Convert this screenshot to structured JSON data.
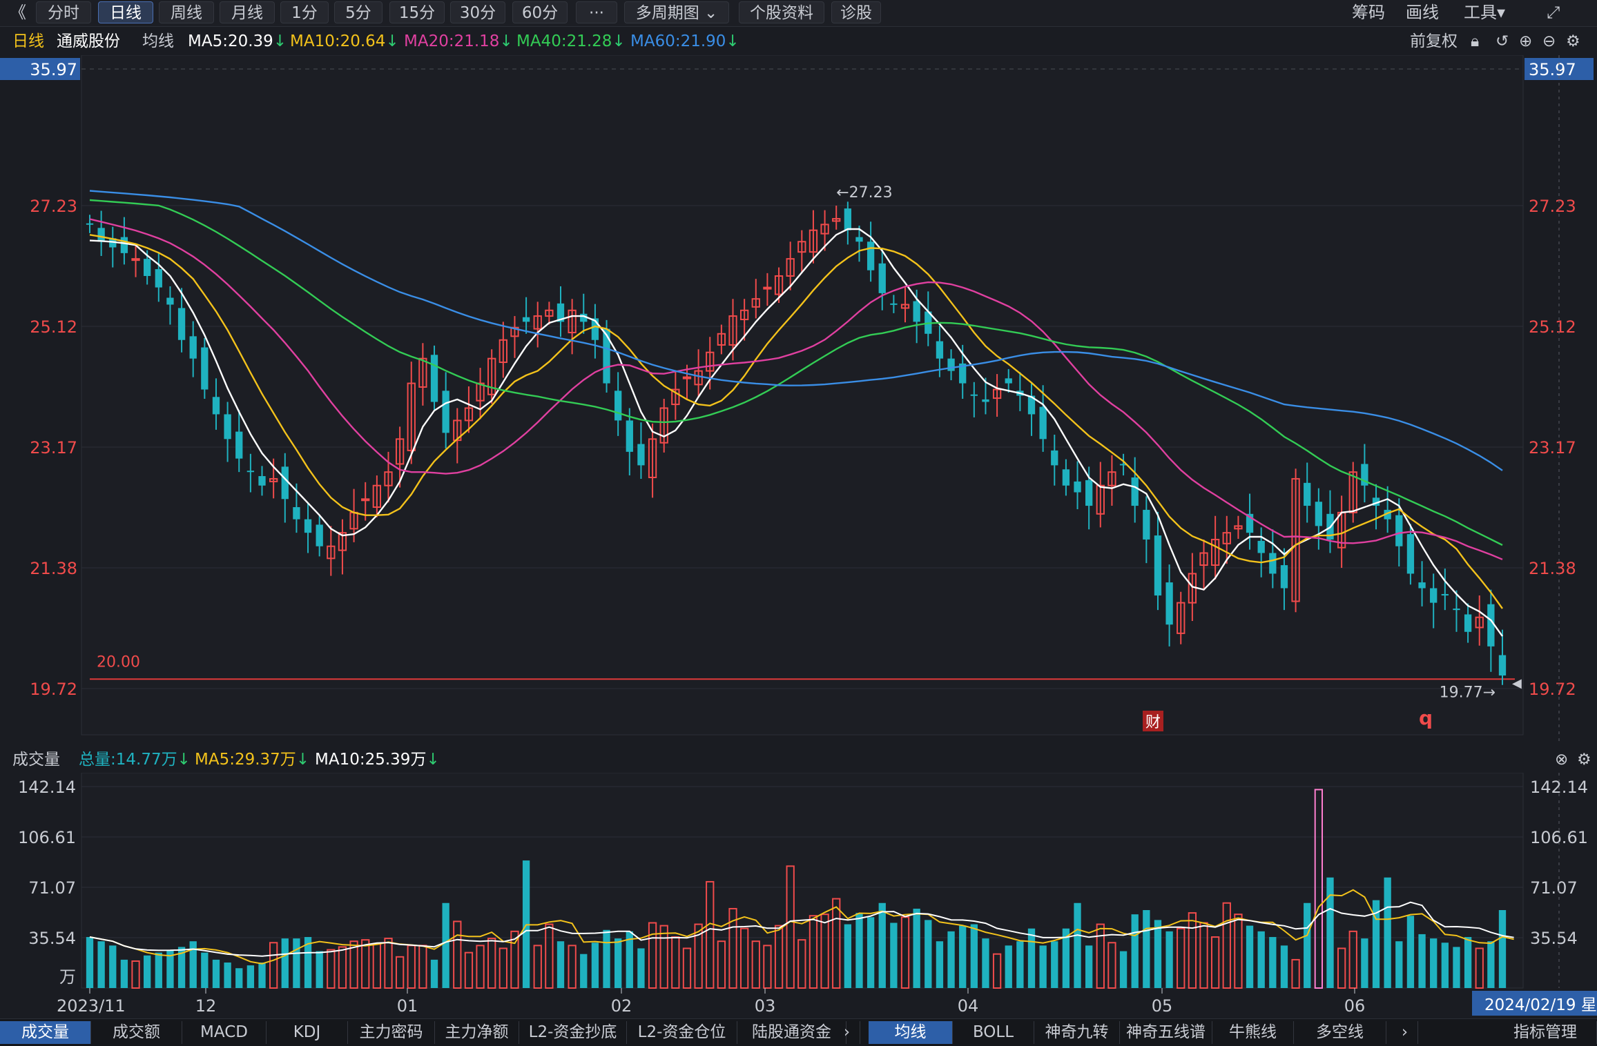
{
  "toolbar": {
    "collapse": "《",
    "periods": [
      "分时",
      "日线",
      "周线",
      "月线",
      "1分",
      "5分",
      "15分",
      "30分",
      "60分",
      "···",
      "多周期图 ⌄",
      "个股资料",
      "诊股"
    ],
    "active_period": "日线",
    "right": [
      "筹码",
      "画线",
      "工具▾",
      "⤢"
    ]
  },
  "info": {
    "period": "日线",
    "stock": "通威股份",
    "ma_label": "均线",
    "ma5": "MA5:20.39",
    "ma10": "MA10:20.64",
    "ma20": "MA20:21.18",
    "ma40": "MA40:21.28",
    "ma60": "MA60:21.90",
    "adjust": "前复权"
  },
  "colors": {
    "up": "#f04b4b",
    "down": "#1fb2c0",
    "ma5": "#ffffff",
    "ma10": "#f3c21b",
    "ma20": "#e040a0",
    "ma40": "#33cc55",
    "ma60": "#3a8ee6",
    "price_axis": "#f04b4b"
  },
  "chart_data": {
    "type": "candlestick",
    "y_ticks": [
      "35.97",
      "27.23",
      "25.12",
      "23.17",
      "21.38",
      "19.72"
    ],
    "ylim": [
      19.0,
      36.0
    ],
    "x_ticks": [
      "2023/11",
      "12",
      "01",
      "02",
      "03",
      "04",
      "05",
      "06"
    ],
    "max_label": "←27.23",
    "min_label": "19.77→",
    "ref_line_label": "20.00",
    "ref_line_value": 19.85,
    "marker_cai": "财",
    "marker_q": "q",
    "max_price": 27.23,
    "min_price": 19.77,
    "volume": {
      "title": "成交量",
      "total": "总量:14.77万",
      "ma5": "MA5:29.37万",
      "ma10": "MA10:25.39万",
      "y_ticks": [
        "142.14",
        "106.61",
        "71.07",
        "35.54",
        "万"
      ],
      "ylim": [
        0,
        142.14
      ],
      "date_label": "2024/02/19 星"
    },
    "candle_seed": [
      26.9,
      26.6,
      26.5,
      26.4,
      26.3,
      26.0,
      25.8,
      25.5,
      24.9,
      24.6,
      24.1,
      23.7,
      23.3,
      23.0,
      22.8,
      22.6,
      22.7,
      22.4,
      22.1,
      21.9,
      21.7,
      21.7,
      21.9,
      22.2,
      22.4,
      22.6,
      22.8,
      23.3,
      24.2,
      24.6,
      23.9,
      23.4,
      23.6,
      23.8,
      24.2,
      24.6,
      24.9,
      25.1,
      25.2,
      25.3,
      25.4,
      25.2,
      25.4,
      25.2,
      24.9,
      24.2,
      23.6,
      23.1,
      22.9,
      23.3,
      23.8,
      24.1,
      24.3,
      24.4,
      24.7,
      25.0,
      25.3,
      25.4,
      25.6,
      25.8,
      26.0,
      26.3,
      26.6,
      26.8,
      26.9,
      27.0,
      26.8,
      26.6,
      26.1,
      25.7,
      25.5,
      25.5,
      25.2,
      25.0,
      24.6,
      24.4,
      24.2,
      24.0,
      23.9,
      24.1,
      24.2,
      24.0,
      23.7,
      23.3,
      22.9,
      22.6,
      22.5,
      22.3,
      22.6,
      22.8,
      22.9,
      22.3,
      21.8,
      21.0,
      20.6,
      20.9,
      21.3,
      21.6,
      21.8,
      21.9,
      22.0,
      21.9,
      21.6,
      21.3,
      21.1,
      22.7,
      22.3,
      22.0,
      21.8,
      22.2,
      22.8,
      22.6,
      22.3,
      22.1,
      21.7,
      21.3,
      21.1,
      20.9,
      21.0,
      20.8,
      20.5,
      20.7,
      20.3,
      19.9
    ],
    "volume_seed": [
      36,
      33,
      30,
      20,
      19,
      23,
      25,
      27,
      29,
      33,
      25,
      20,
      18,
      14,
      16,
      18,
      32,
      35,
      35,
      36,
      26,
      27,
      29,
      33,
      34,
      31,
      35,
      22,
      30,
      30,
      20,
      60,
      47,
      25,
      30,
      35,
      28,
      40,
      90,
      30,
      45,
      33,
      30,
      24,
      32,
      41,
      35,
      40,
      28,
      46,
      44,
      36,
      28,
      45,
      75,
      33,
      56,
      42,
      33,
      30,
      44,
      86,
      34,
      51,
      52,
      63,
      45,
      53,
      50,
      60,
      46,
      50,
      56,
      48,
      33,
      40,
      44,
      45,
      35,
      24,
      30,
      33,
      42,
      30,
      33,
      42,
      60,
      30,
      45,
      32,
      26,
      52,
      55,
      48,
      40,
      42,
      53,
      46,
      36,
      60,
      52,
      44,
      40,
      36,
      30,
      20,
      60,
      140,
      78,
      28,
      40,
      35,
      62,
      78,
      33,
      51,
      38,
      35,
      32,
      29,
      36,
      28,
      33,
      55,
      20
    ]
  },
  "bottom_tabs_left": [
    "成交量",
    "成交额",
    "MACD",
    "KDJ",
    "主力密码",
    "主力净额",
    "L2-资金抄底",
    "L2-资金仓位",
    "陆股通资金"
  ],
  "bottom_tabs_right": [
    "均线",
    "BOLL",
    "神奇九转",
    "神奇五线谱",
    "牛熊线",
    "多空线"
  ],
  "bottom_right": "指标管理"
}
